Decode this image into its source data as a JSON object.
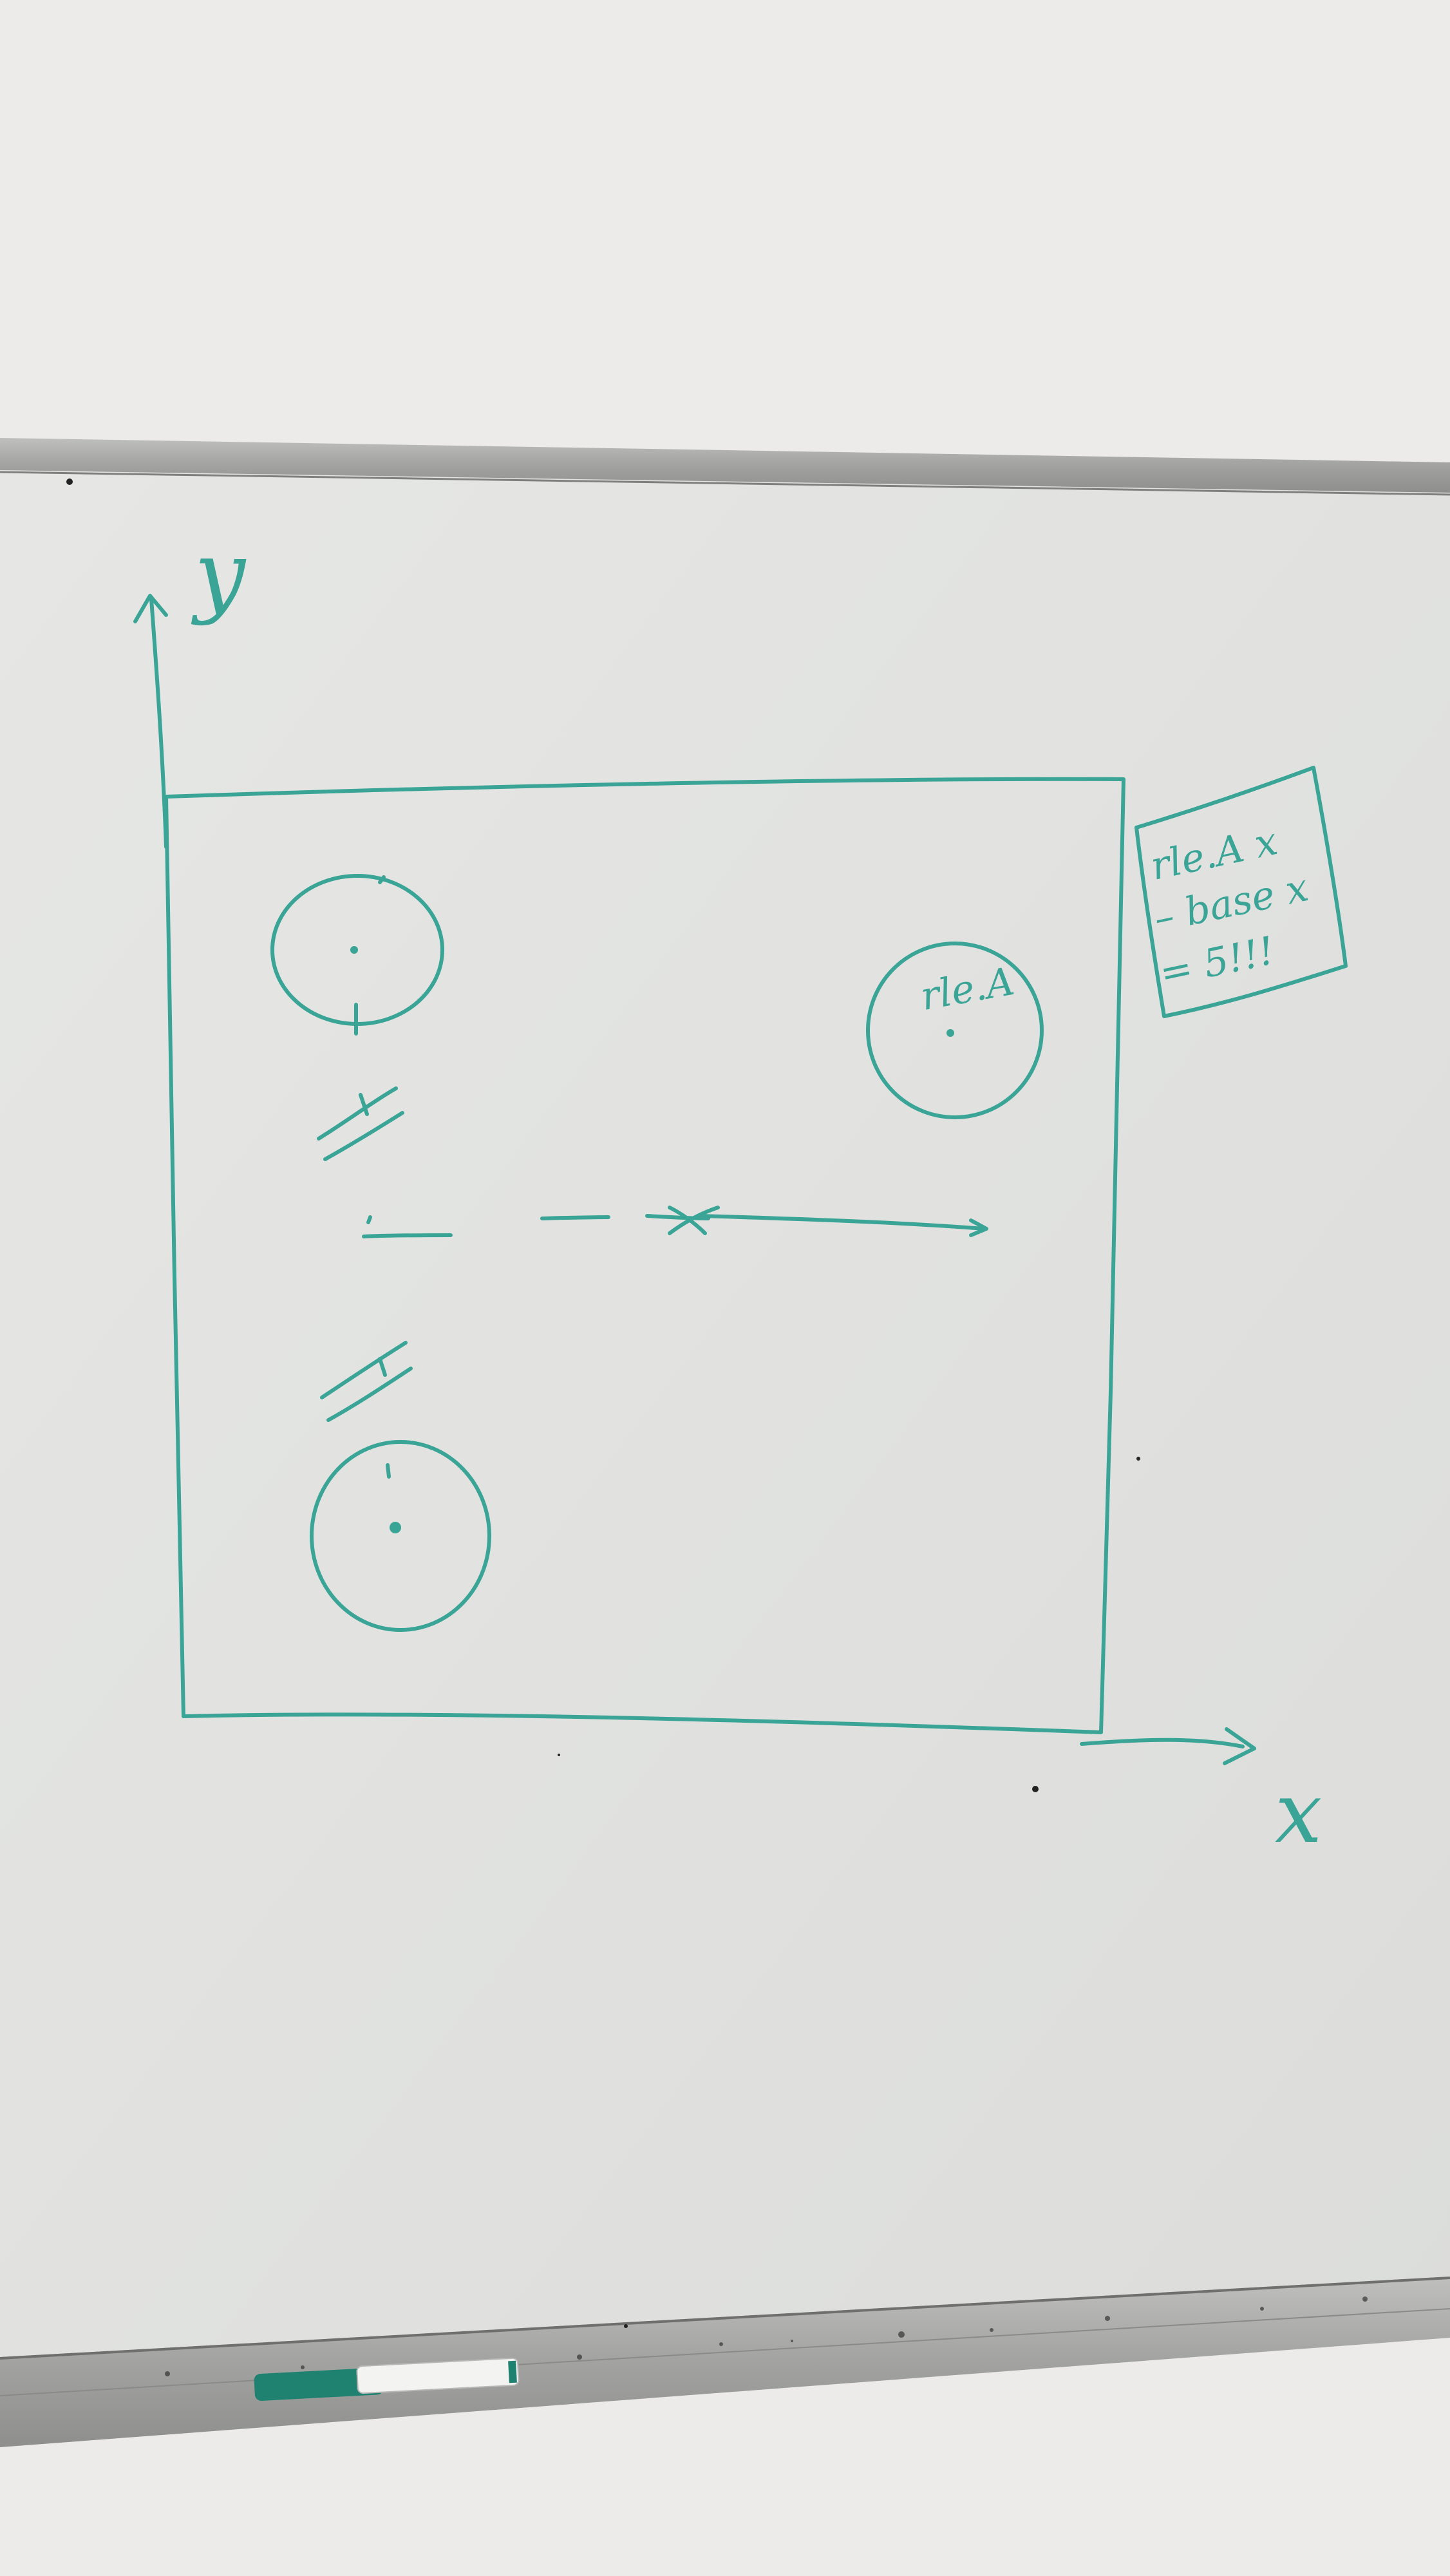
{
  "axes": {
    "y_label": "y",
    "x_label": "x"
  },
  "circle_label": "rle.A",
  "note": {
    "lines": [
      "rle.A x",
      "– base x",
      "= 5!!!"
    ]
  },
  "colors": {
    "ink": "#3aa596",
    "wall": "#ececea",
    "board": "#e3e4e2",
    "frame": "#a9aaa8",
    "marker_body": "#f1f1ef",
    "marker_cap": "#1c7d6d"
  }
}
